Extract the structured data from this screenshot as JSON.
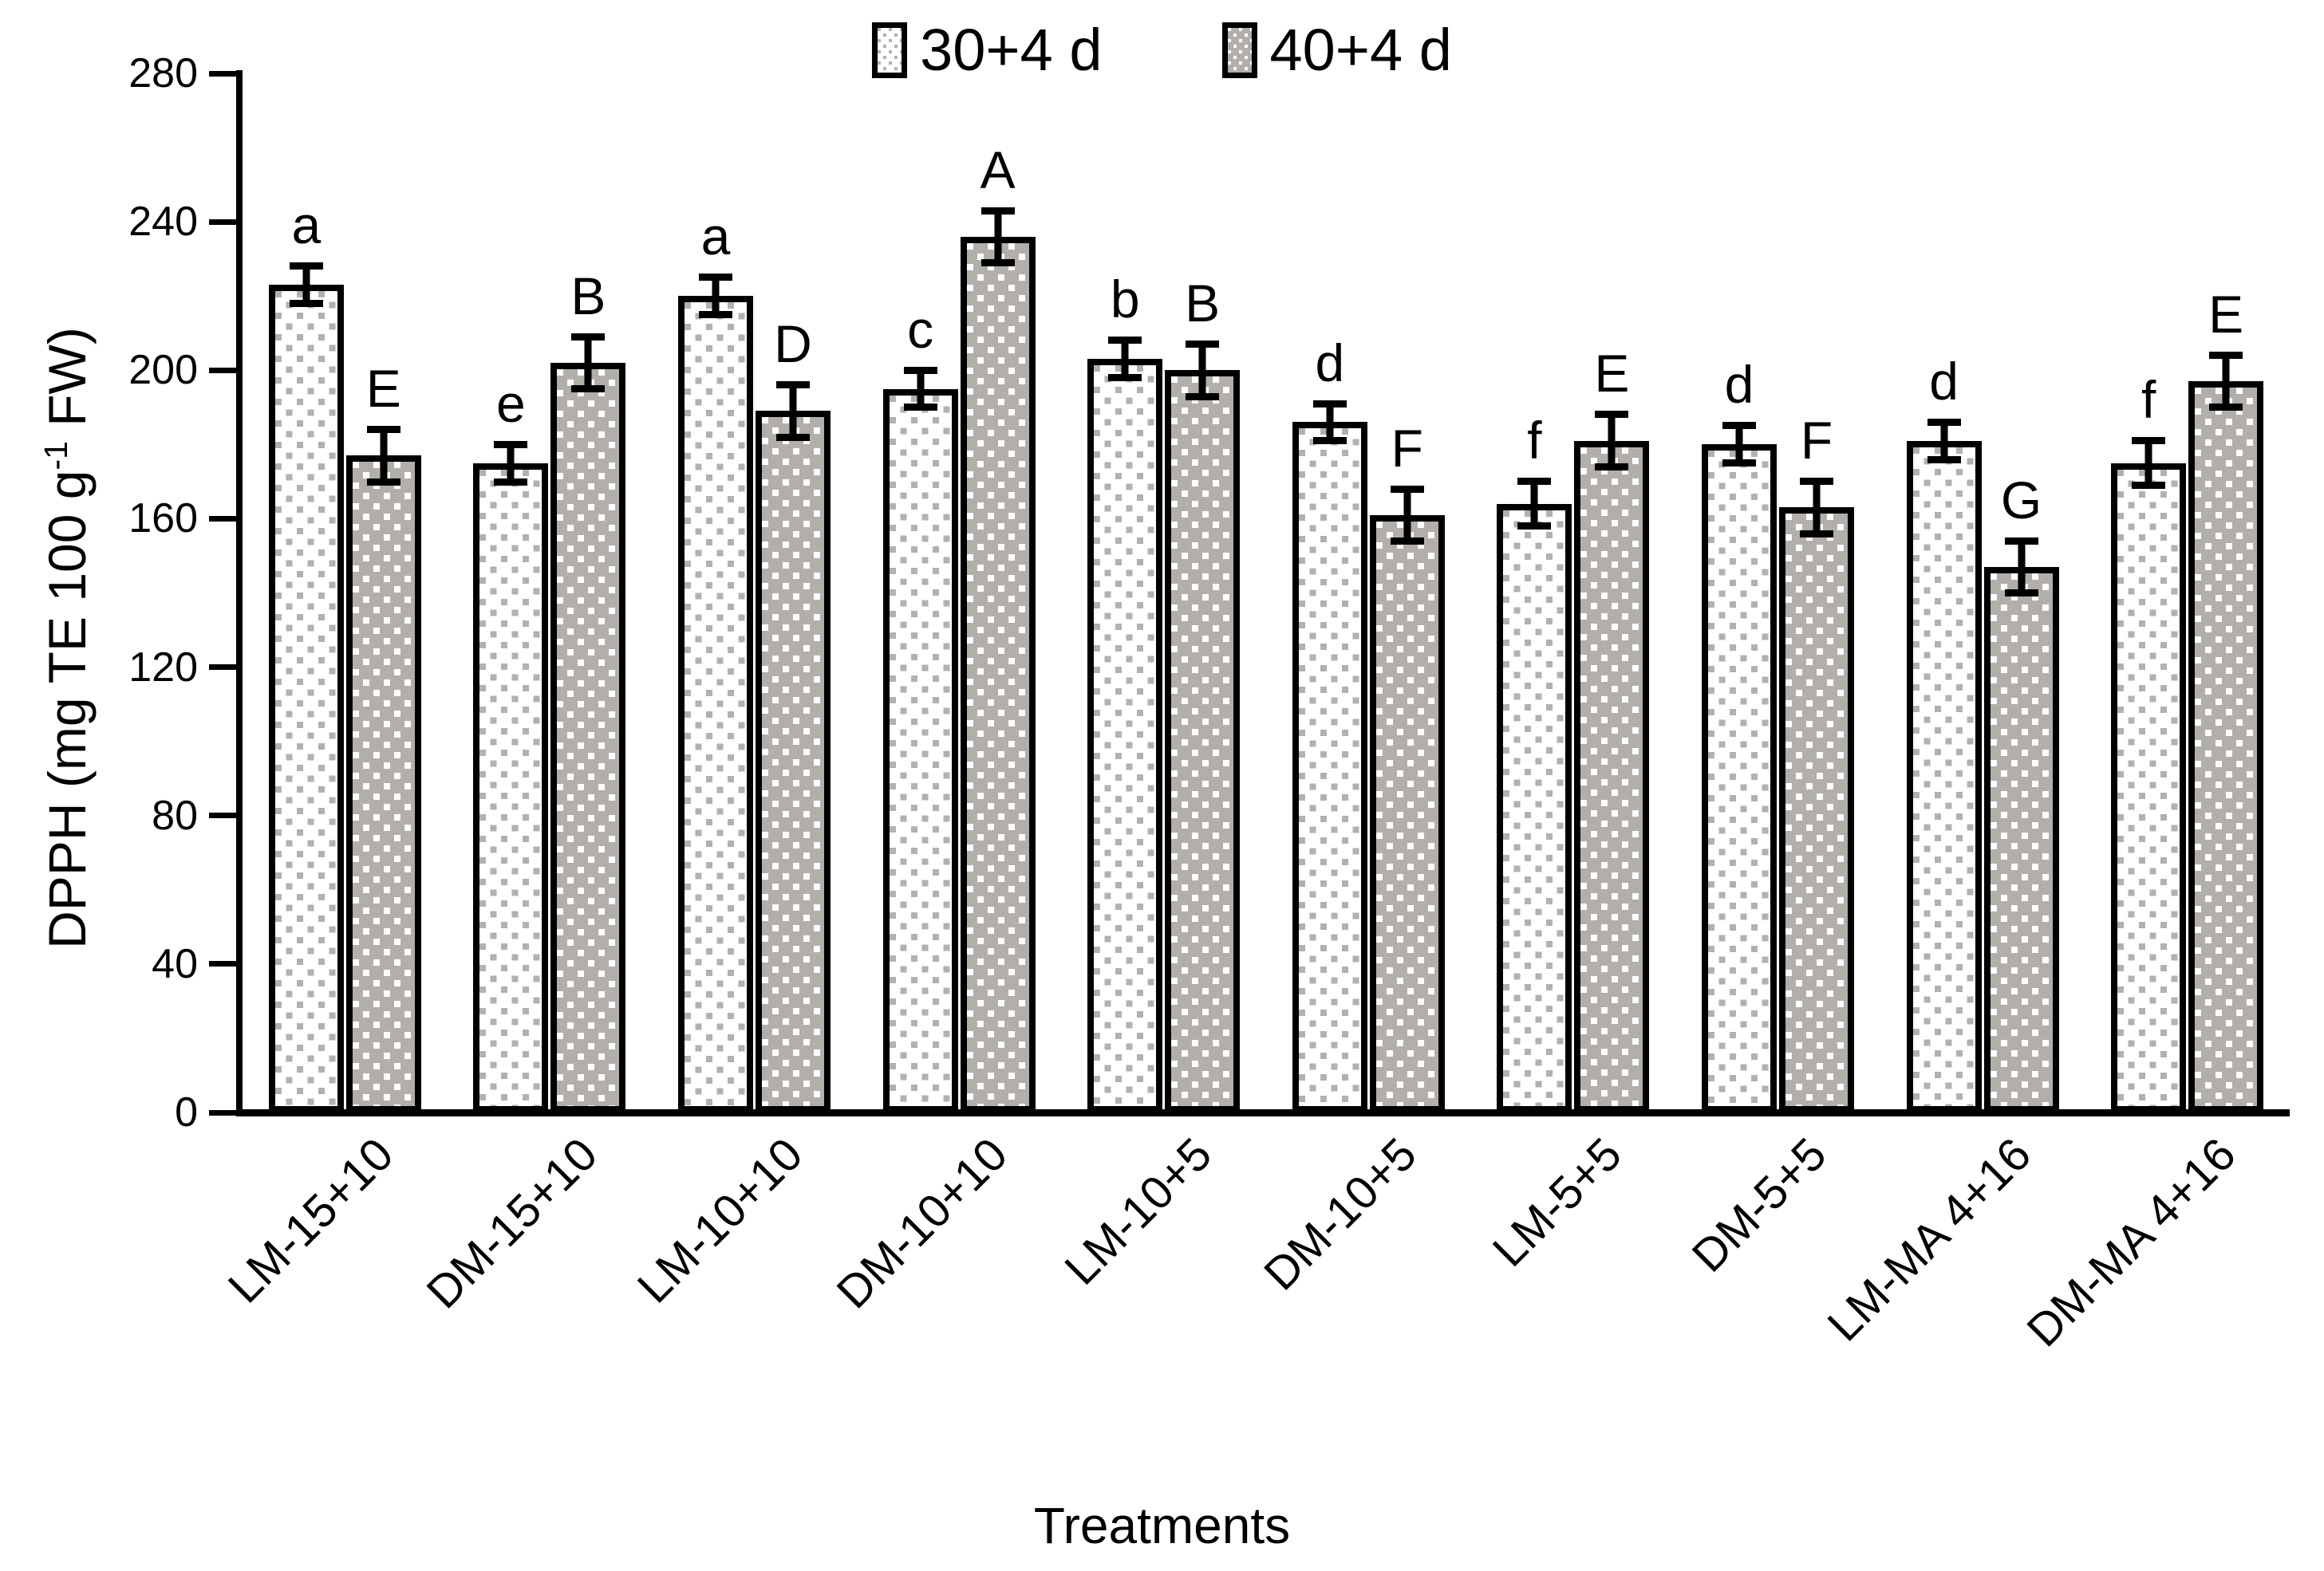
{
  "chart_data": {
    "type": "bar",
    "title": "",
    "xlabel": "Treatments",
    "ylabel": "DPPH (mg TE 100 g⁻¹ FW)",
    "ylabel_parts": {
      "pre": "DPPH (mg TE 100 g",
      "sup": "-1",
      "post": " FW)"
    },
    "ylim": [
      0,
      280
    ],
    "yticks": [
      0,
      40,
      80,
      120,
      160,
      200,
      240,
      280
    ],
    "grid": false,
    "legend_position": "top-center",
    "categories": [
      "LM-15+10",
      "DM-15+10",
      "LM-10+10",
      "DM-10+10",
      "LM-10+5",
      "DM-10+5",
      "LM-5+5",
      "DM-5+5",
      "LM-MA 4+16",
      "DM-MA 4+16"
    ],
    "series": [
      {
        "name": "30+4 d",
        "fill": "white-with-gray-square-dots",
        "base_color": "#ffffff",
        "dot_color": "#b4b0b0",
        "values": [
          223,
          175,
          220,
          195,
          203,
          186,
          164,
          180,
          181,
          175
        ],
        "errors": [
          6,
          6,
          6,
          6,
          6,
          6,
          7,
          6,
          6,
          7
        ],
        "letters": [
          "a",
          "e",
          "a",
          "c",
          "b",
          "d",
          "f",
          "d",
          "d",
          "f"
        ]
      },
      {
        "name": "40+4 d",
        "fill": "gray-with-white-square-dots",
        "base_color": "#b2afab",
        "dot_color": "#ffffff",
        "values": [
          177,
          202,
          189,
          236,
          200,
          161,
          181,
          163,
          147,
          197
        ],
        "errors": [
          8,
          8,
          8,
          8,
          8,
          8,
          8,
          8,
          8,
          8
        ],
        "letters": [
          "E",
          "B",
          "D",
          "A",
          "B",
          "F",
          "E",
          "F",
          "G",
          "E"
        ]
      }
    ],
    "axis_color": "#000000"
  }
}
